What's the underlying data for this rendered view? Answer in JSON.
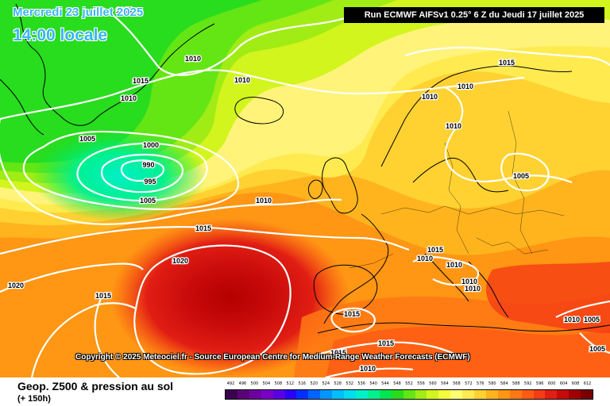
{
  "header": {
    "date_title": "Mercredi 23 juillet 2025",
    "time_title": "14:00 locale",
    "run_info": "Run ECMWF AIFSv1 0.25° 6 Z du Jeudi 17 juillet 2025"
  },
  "copyright": "Copyright © 2025 Meteociel.fr - Source European Centre for Medium-Range Weather Forecasts (ECMWF)",
  "footer": {
    "parameter": "Geop. Z500 & pression au sol",
    "lead_time": "(+ 150h)"
  },
  "legend": {
    "labels": [
      "492",
      "496",
      "500",
      "504",
      "508",
      "512",
      "516",
      "520",
      "524",
      "528",
      "532",
      "536",
      "540",
      "544",
      "548",
      "552",
      "556",
      "560",
      "564",
      "568",
      "572",
      "576",
      "580",
      "584",
      "588",
      "592",
      "596",
      "600",
      "604",
      "608",
      "612"
    ],
    "colors": [
      "#3c0050",
      "#5a0078",
      "#6e00a0",
      "#7a00c8",
      "#5a00e6",
      "#2a00ff",
      "#0030ff",
      "#0064ff",
      "#0096ff",
      "#00beff",
      "#00dcf0",
      "#00f0c8",
      "#00f090",
      "#00e650",
      "#28dc1e",
      "#64e614",
      "#a0ec14",
      "#d2f51e",
      "#f5fa3c",
      "#ffff73",
      "#ffeb50",
      "#ffd232",
      "#ffb41e",
      "#ff9614",
      "#ff7814",
      "#ff5a14",
      "#f53c14",
      "#e11e14",
      "#c80a0a",
      "#a00000",
      "#780000"
    ]
  },
  "isobar_labels": [
    {
      "text": "1015"
    },
    {
      "text": "1010"
    },
    {
      "text": "1015"
    },
    {
      "text": "1010"
    },
    {
      "text": "1010"
    },
    {
      "text": "1005"
    },
    {
      "text": "1000"
    },
    {
      "text": "990"
    },
    {
      "text": "995"
    },
    {
      "text": "1005"
    },
    {
      "text": "1010"
    },
    {
      "text": "1015"
    },
    {
      "text": "1020"
    },
    {
      "text": "1020"
    },
    {
      "text": "1015"
    },
    {
      "text": "1015"
    },
    {
      "text": "1010"
    },
    {
      "text": "1010"
    },
    {
      "text": "1010"
    },
    {
      "text": "1005"
    },
    {
      "text": "1015"
    },
    {
      "text": "1010"
    },
    {
      "text": "1010"
    },
    {
      "text": "1010"
    },
    {
      "text": "1010"
    },
    {
      "text": "1015"
    },
    {
      "text": "1015"
    },
    {
      "text": "1015"
    },
    {
      "text": "1010"
    },
    {
      "text": "1010"
    },
    {
      "text": "1005"
    },
    {
      "text": "1005"
    }
  ]
}
